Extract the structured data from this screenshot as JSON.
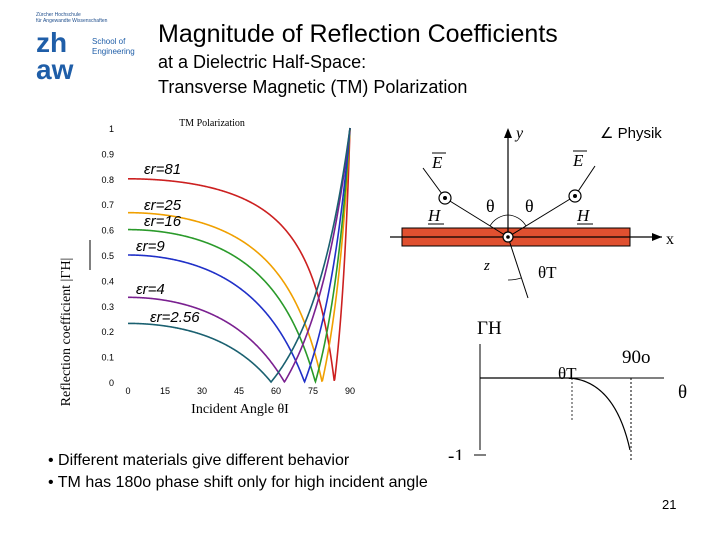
{
  "logo": {
    "tiny_lines": [
      "Zürcher Hochschule",
      "für Angewandte Wissenschaften"
    ],
    "mark_top": "zh",
    "mark_bottom": "aw",
    "school_line1": "School of",
    "school_line2": "Engineering"
  },
  "slide": {
    "title": "Magnitude of Reflection Coefficients",
    "subtitle_line1": "at a Dielectric Half-Space:",
    "subtitle_line2": "Transverse  Magnetic (TM) Polarization",
    "bullets": [
      "Different materials give different behavior",
      "TM has 180o phase shift only for high incident angle"
    ],
    "page_number": "21"
  },
  "chart_data": {
    "type": "line",
    "title": "TM Polarization",
    "xlabel": "Incident Angle θI",
    "ylabel": "Reflection coefficient |ΓH|",
    "xlim": [
      0,
      90
    ],
    "ylim": [
      0,
      1
    ],
    "xticks": [
      "0",
      "15",
      "30",
      "45",
      "60",
      "75",
      "90"
    ],
    "yticks": [
      "0",
      "0.1",
      "0.2",
      "0.3",
      "0.4",
      "0.5",
      "0.6",
      "0.7",
      "0.8",
      "0.9",
      "1"
    ],
    "series": [
      {
        "name": "εr=81",
        "eps": 81,
        "color": "#cc2020"
      },
      {
        "name": "εr=25",
        "eps": 25,
        "color": "#f0a000"
      },
      {
        "name": "εr=16",
        "eps": 16,
        "color": "#2a9a2a"
      },
      {
        "name": "εr=9",
        "eps": 9,
        "color": "#2030c8"
      },
      {
        "name": "εr=4",
        "eps": 4,
        "color": "#7a2090"
      },
      {
        "name": "εr=2.56",
        "eps": 2.56,
        "color": "#1a6070"
      }
    ],
    "curve_labels": [
      "εr=81",
      "εr=25",
      "εr=16",
      "εr=9",
      "εr=4",
      "εr=2.56"
    ]
  },
  "diagram": {
    "y_label": "y",
    "x_label": "x",
    "z_label": "z",
    "e_label": "E",
    "h_label": "H",
    "theta": "θ",
    "theta_t": "θT",
    "physik": "∠ Physik",
    "gamma_h": "ΓH",
    "ninety": "90o",
    "minus_one": "-1",
    "theta_axis": "θ",
    "slab_color": "#e05030"
  }
}
